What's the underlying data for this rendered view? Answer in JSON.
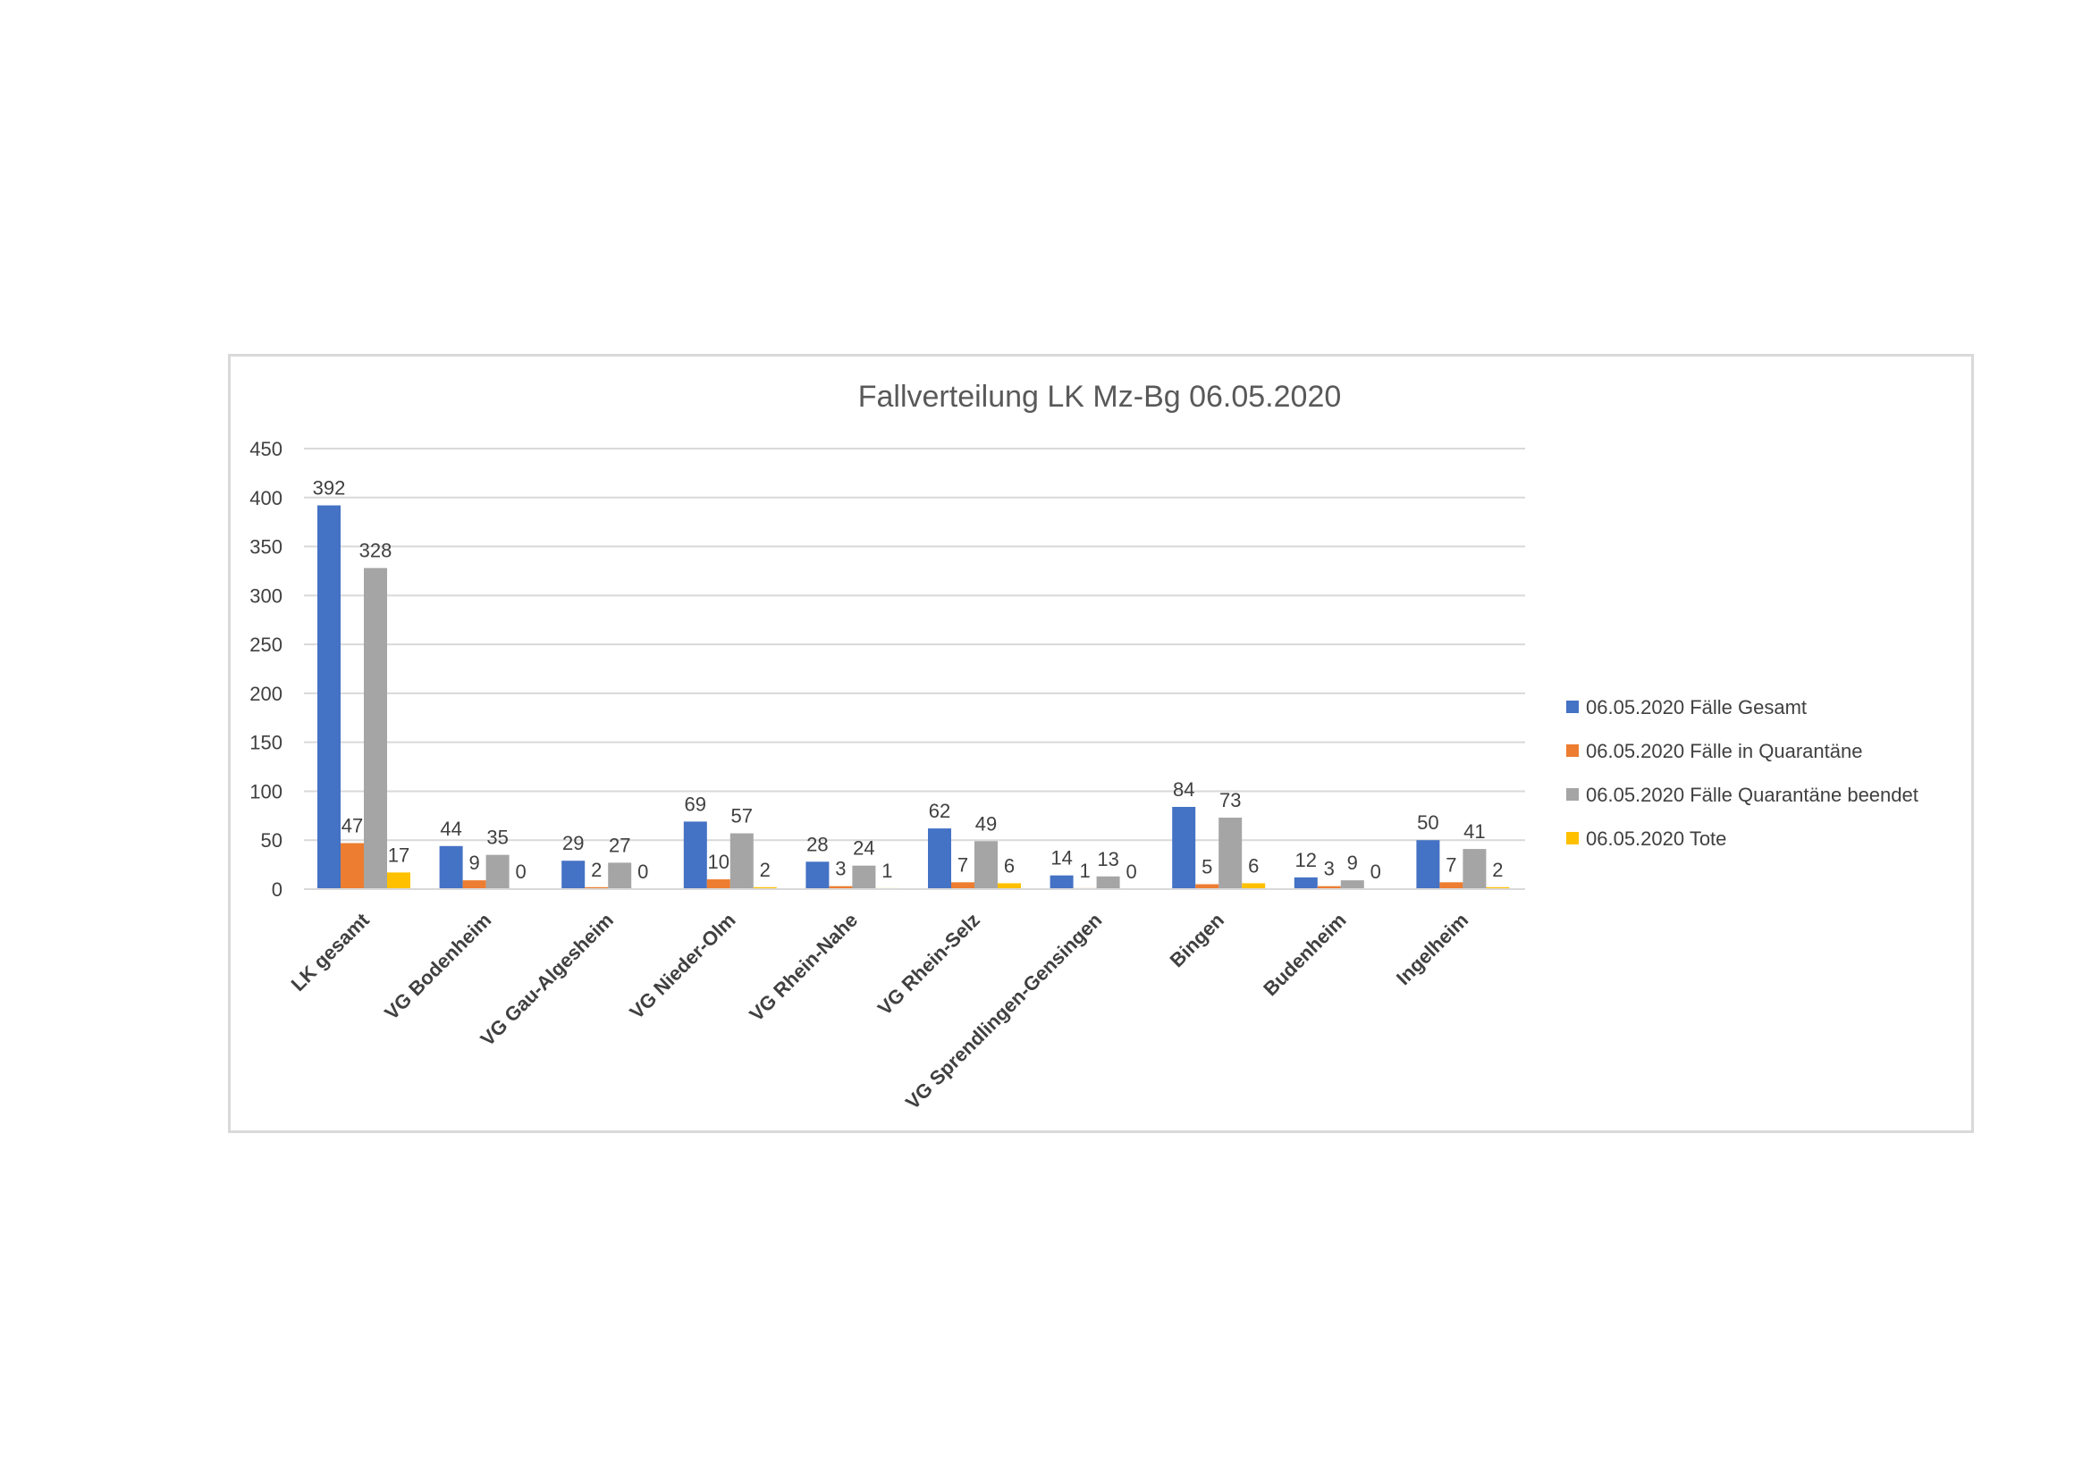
{
  "chart_data": {
    "type": "bar",
    "title": "Fallverteilung LK Mz-Bg 06.05.2020",
    "xlabel": "",
    "ylabel": "",
    "ylim": [
      0,
      450
    ],
    "yticks": [
      0,
      50,
      100,
      150,
      200,
      250,
      300,
      350,
      400,
      450
    ],
    "grid": true,
    "legend_position": "right",
    "categories": [
      "LK gesamt",
      "VG Bodenheim",
      "VG Gau-Algesheim",
      "VG Nieder-Olm",
      "VG Rhein-Nahe",
      "VG Rhein-Selz",
      "VG Sprendlingen-Gensingen",
      "Bingen",
      "Budenheim",
      "Ingelheim"
    ],
    "series": [
      {
        "name": "06.05.2020 Fälle Gesamt",
        "color": "#4472c4",
        "values": [
          392,
          44,
          29,
          69,
          28,
          62,
          14,
          84,
          12,
          50
        ]
      },
      {
        "name": "06.05.2020 Fälle in Quarantäne",
        "color": "#ed7d31",
        "values": [
          47,
          9,
          2,
          10,
          3,
          7,
          1,
          5,
          3,
          7
        ]
      },
      {
        "name": "06.05.2020 Fälle Quarantäne beendet",
        "color": "#a5a5a5",
        "values": [
          328,
          35,
          27,
          57,
          24,
          49,
          13,
          73,
          9,
          41
        ]
      },
      {
        "name": "06.05.2020 Tote",
        "color": "#ffc000",
        "values": [
          17,
          0,
          0,
          2,
          1,
          6,
          0,
          6,
          0,
          2
        ]
      }
    ]
  }
}
